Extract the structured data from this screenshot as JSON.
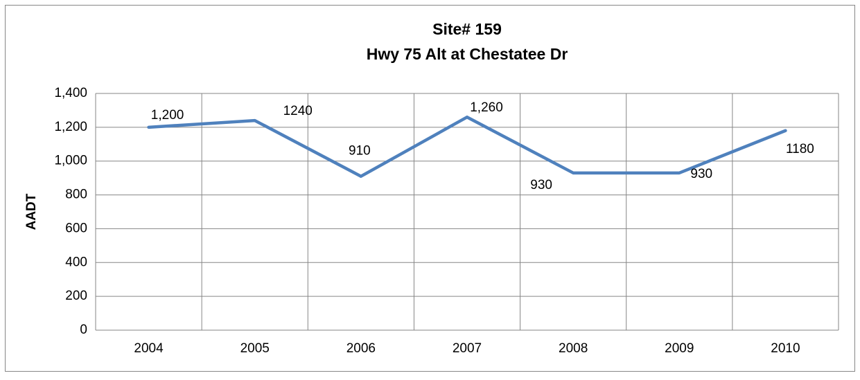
{
  "chart_data": {
    "type": "line",
    "title": "Site# 159",
    "subtitle": "Hwy 75 Alt at Chestatee Dr",
    "y_label": "AADT",
    "categories": [
      "2004",
      "2005",
      "2006",
      "2007",
      "2008",
      "2009",
      "2010"
    ],
    "values": [
      1200,
      1240,
      910,
      1260,
      930,
      930,
      1180
    ],
    "value_labels": [
      "1,200",
      "1240",
      "910",
      "1,260",
      "930",
      "930",
      "1180"
    ],
    "color": "#4f81bd",
    "ylim": [
      0,
      1400
    ],
    "yticks": [
      0,
      200,
      400,
      600,
      800,
      {
        "value": 1000,
        "label": "1,000"
      },
      {
        "value": 1200,
        "label": "1,200"
      },
      {
        "value": 1400,
        "label": "1,400"
      }
    ],
    "grid": true
  }
}
